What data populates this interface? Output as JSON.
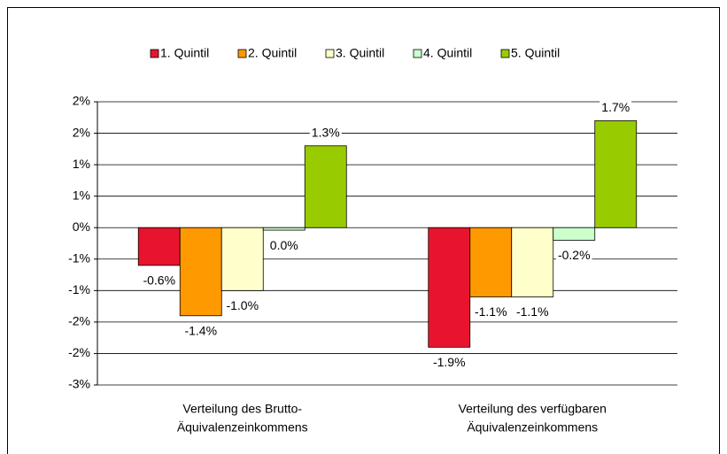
{
  "chart_data": {
    "type": "bar",
    "categories": [
      [
        "Verteilung des Brutto-",
        "Äquivalenzeinkommens"
      ],
      [
        "Verteilung des verfügbaren",
        "Äquivalenzeinkommens"
      ]
    ],
    "series": [
      {
        "name": "1. Quintil",
        "color": "#e8142d",
        "values": [
          -0.6,
          -1.9
        ],
        "value_labels": [
          "-0.6%",
          "-1.9%"
        ]
      },
      {
        "name": "2. Quintil",
        "color": "#ff9900",
        "values": [
          -1.4,
          -1.1
        ],
        "value_labels": [
          "-1.4%",
          "-1.1%"
        ]
      },
      {
        "name": "3. Quintil",
        "color": "#ffffcc",
        "values": [
          -1.0,
          -1.1
        ],
        "value_labels": [
          "-1.0%",
          "-1.1%"
        ]
      },
      {
        "name": "4. Quintil",
        "color": "#ccffcc",
        "values": [
          -0.04,
          -0.2
        ],
        "value_labels": [
          "0.0%",
          "-0.2%"
        ]
      },
      {
        "name": "5. Quintil",
        "color": "#99cc00",
        "values": [
          1.3,
          1.7
        ],
        "value_labels": [
          "1.3%",
          "1.7%"
        ]
      }
    ],
    "ylim": [
      -2.5,
      2
    ],
    "yticks": [
      {
        "value": 2,
        "label": "2%"
      },
      {
        "value": 1.5,
        "label": "2%"
      },
      {
        "value": 1,
        "label": "1%"
      },
      {
        "value": 0.5,
        "label": "1%"
      },
      {
        "value": 0,
        "label": "0%"
      },
      {
        "value": -0.5,
        "label": "-1%"
      },
      {
        "value": -1,
        "label": "-1%"
      },
      {
        "value": -1.5,
        "label": "-2%"
      },
      {
        "value": -2,
        "label": "-2%"
      },
      {
        "value": -2.5,
        "label": "-3%"
      }
    ],
    "grid": true,
    "legend": "top"
  }
}
